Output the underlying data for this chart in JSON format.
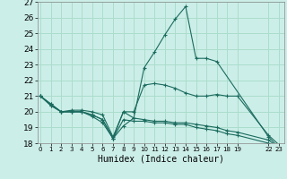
{
  "xlabel": "Humidex (Indice chaleur)",
  "bg_color": "#cceee8",
  "grid_color": "#aaddcc",
  "line_color": "#1a6b5e",
  "ylim": [
    18,
    27
  ],
  "yticks": [
    18,
    19,
    20,
    21,
    22,
    23,
    24,
    25,
    26,
    27
  ],
  "xlim": [
    -0.3,
    23.5
  ],
  "xtick_positions": [
    0,
    1,
    2,
    3,
    4,
    5,
    6,
    7,
    8,
    9,
    10,
    11,
    12,
    13,
    14,
    15,
    16,
    17,
    18,
    19,
    22,
    23
  ],
  "xtick_labels": [
    "0",
    "1",
    "2",
    "3",
    "4",
    "5",
    "6",
    "7",
    "8",
    "9",
    "10",
    "11",
    "12",
    "13",
    "14",
    "15",
    "16",
    "17",
    "18",
    "19",
    "22",
    "23"
  ],
  "series": [
    {
      "x": [
        0,
        1,
        2,
        3,
        4,
        5,
        6,
        7,
        8,
        9,
        10,
        11,
        12,
        13,
        14,
        15,
        16,
        17,
        22,
        23
      ],
      "y": [
        21.0,
        20.5,
        20.0,
        20.0,
        20.0,
        19.7,
        19.3,
        18.3,
        19.1,
        19.6,
        22.8,
        23.8,
        24.9,
        25.9,
        26.7,
        23.4,
        23.4,
        23.2,
        18.4,
        17.7
      ]
    },
    {
      "x": [
        0,
        1,
        2,
        3,
        4,
        5,
        6,
        7,
        8,
        9,
        10,
        11,
        12,
        13,
        14,
        15,
        16,
        17,
        18,
        19,
        22,
        23
      ],
      "y": [
        21.0,
        20.5,
        20.0,
        20.1,
        20.1,
        20.0,
        19.8,
        18.4,
        20.0,
        19.6,
        19.5,
        19.4,
        19.4,
        19.3,
        19.3,
        19.2,
        19.1,
        19.0,
        18.8,
        18.7,
        18.2,
        17.7
      ]
    },
    {
      "x": [
        0,
        1,
        2,
        3,
        4,
        5,
        6,
        7,
        8,
        9,
        10,
        11,
        12,
        13,
        14,
        15,
        16,
        17,
        18,
        19,
        22,
        23
      ],
      "y": [
        21.0,
        20.4,
        20.0,
        20.0,
        20.0,
        19.8,
        19.5,
        18.3,
        20.0,
        20.0,
        21.7,
        21.8,
        21.7,
        21.5,
        21.2,
        21.0,
        21.0,
        21.1,
        21.0,
        21.0,
        18.5,
        17.9
      ]
    },
    {
      "x": [
        0,
        1,
        2,
        3,
        4,
        5,
        6,
        7,
        8,
        9,
        10,
        11,
        12,
        13,
        14,
        15,
        16,
        17,
        18,
        19,
        22,
        23
      ],
      "y": [
        21.0,
        20.4,
        20.0,
        20.0,
        20.0,
        19.8,
        19.5,
        18.3,
        19.5,
        19.4,
        19.4,
        19.3,
        19.3,
        19.2,
        19.2,
        19.0,
        18.9,
        18.8,
        18.6,
        18.5,
        18.0,
        17.7
      ]
    }
  ]
}
